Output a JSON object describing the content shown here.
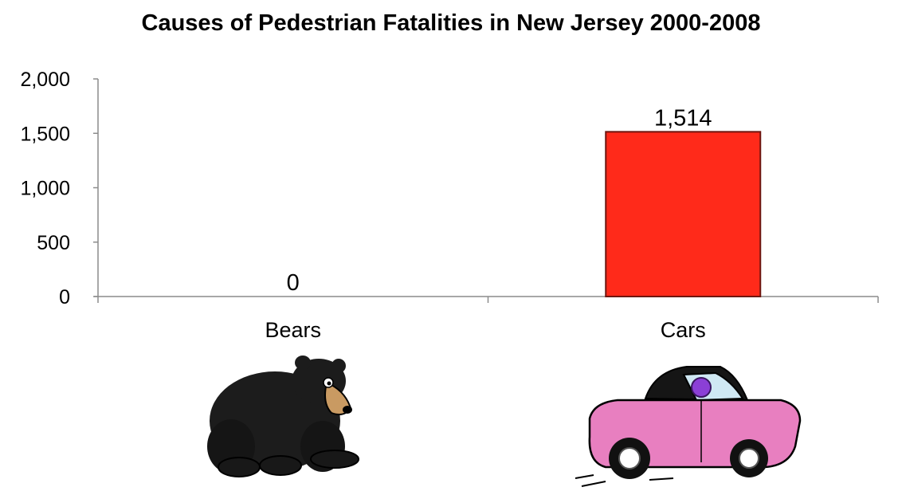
{
  "chart_data": {
    "type": "bar",
    "title": "Causes of Pedestrian Fatalities in New Jersey 2000-2008",
    "categories": [
      "Bears",
      "Cars"
    ],
    "values": [
      0,
      1514
    ],
    "data_labels": [
      "0",
      "1,514"
    ],
    "y_ticks": [
      0,
      500,
      1000,
      1500,
      2000
    ],
    "y_tick_labels": [
      "0",
      "500",
      "1,000",
      "1,500",
      "2,000"
    ],
    "ylim": [
      0,
      2000
    ],
    "grid": false,
    "bar_color": "#ff2a1a",
    "bar_outline_color": "#6e1610",
    "icons": [
      "bear-icon",
      "car-icon"
    ]
  }
}
